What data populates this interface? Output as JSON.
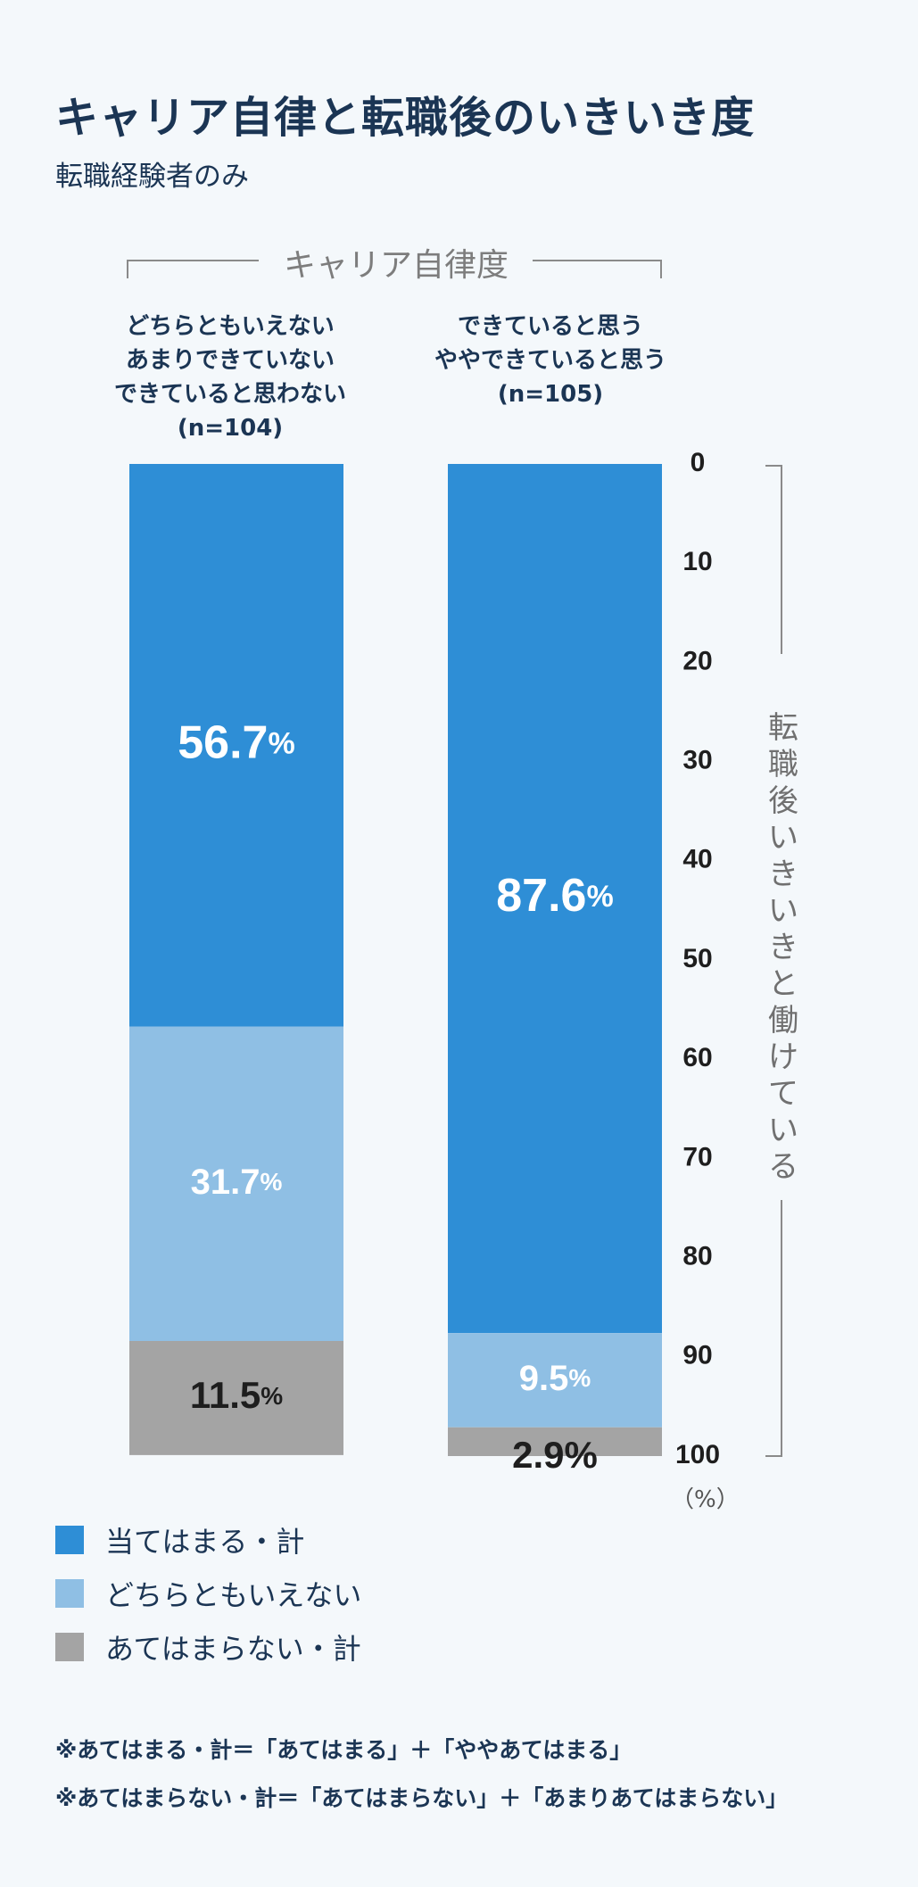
{
  "title": "キャリア自律と転職後のいきいき度",
  "subtitle": "転職経験者のみ",
  "group_label": "キャリア自律度",
  "axis_title": "転職後いきいきと働けている",
  "axis_unit": "（%）",
  "colors": {
    "fits": "#2e8ed6",
    "neutral": "#8fbfe4",
    "not_fit": "#a4a4a4",
    "background": "#f4f8fb",
    "text": "#1b3554"
  },
  "chart_data": {
    "type": "bar",
    "stacked": true,
    "orientation": "vertical",
    "ylim": [
      0,
      100
    ],
    "yticks": [
      0,
      10,
      20,
      30,
      40,
      50,
      60,
      70,
      80,
      90,
      100
    ],
    "y_inverted": true,
    "categories": [
      {
        "lines": [
          "どちらともいえない",
          "あまりできていない",
          "できていると思わない",
          "(n=104)"
        ]
      },
      {
        "lines": [
          "できていると思う",
          "ややできていると思う",
          "(n=105)"
        ]
      }
    ],
    "series": [
      {
        "name": "当てはまる・計",
        "values": [
          56.7,
          87.6
        ]
      },
      {
        "name": "どちらともいえない",
        "values": [
          31.7,
          9.5
        ]
      },
      {
        "name": "あてはまらない・計",
        "values": [
          11.5,
          2.9
        ]
      }
    ],
    "value_suffix": "%",
    "legend_position": "bottom-left"
  },
  "notes": [
    "※あてはまる・計＝「あてはまる」＋「ややあてはまる」",
    "※あてはまらない・計＝「あてはまらない」＋「あまりあてはまらない」"
  ]
}
